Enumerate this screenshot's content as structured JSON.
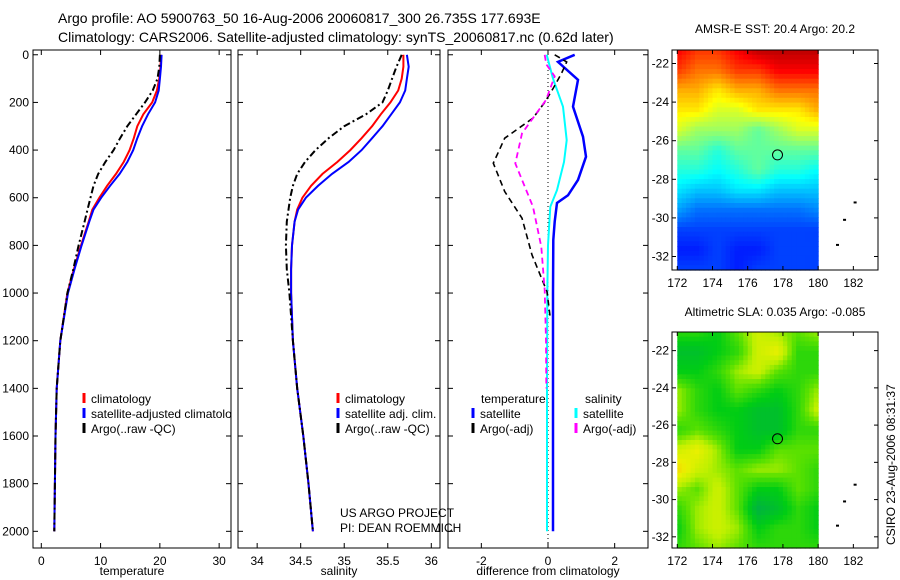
{
  "header": {
    "line1": "Argo profile: AO 5900763_50 16-Aug-2006 20060817_300 26.735S 177.693E",
    "line2": "Climatology: CARS2006. Satellite-adjusted climatology: synTS_20060817.nc (0.62d later)"
  },
  "credit": {
    "project": "US ARGO PROJECT",
    "pi": "PI: DEAN ROEMMICH"
  },
  "stamp": "CSIRO 23-Aug-2006 08:31:37",
  "chart_data": [
    {
      "type": "line",
      "id": "temperature",
      "xlabel": "temperature",
      "ylabel": "",
      "xlim": [
        -1.4,
        32
      ],
      "ylim": [
        2070,
        -20
      ],
      "xticks": [
        0,
        10,
        20,
        30
      ],
      "yticks": [
        0,
        200,
        400,
        600,
        800,
        1000,
        1200,
        1400,
        1600,
        1800,
        2000
      ],
      "legend": [
        "climatology",
        "satellite-adjusted climatology",
        "Argo(..raw -QC)"
      ],
      "legend_visible_text": [
        "climatology",
        "satellite-adjusted climatolo",
        "Argo(..raw -QC)"
      ],
      "depth": [
        0,
        50,
        100,
        150,
        200,
        250,
        300,
        350,
        400,
        450,
        500,
        550,
        600,
        650,
        700,
        800,
        900,
        1000,
        1200,
        1400,
        1600,
        1800,
        2000
      ],
      "series": [
        {
          "name": "climatology",
          "color": "#ff0000",
          "style": "solid",
          "values": [
            20.2,
            20.1,
            19.9,
            19.5,
            18.7,
            17.2,
            16.2,
            15.6,
            14.9,
            13.9,
            12.6,
            11.1,
            9.8,
            8.6,
            8.0,
            6.7,
            5.5,
            4.4,
            3.2,
            2.6,
            2.4,
            2.3,
            2.2
          ]
        },
        {
          "name": "satellite-adjusted climatology",
          "color": "#0000ff",
          "style": "solid",
          "values": [
            20.3,
            20.2,
            20.0,
            19.8,
            19.2,
            18.0,
            17.0,
            16.2,
            15.5,
            14.5,
            13.2,
            11.6,
            10.1,
            8.8,
            8.1,
            6.8,
            5.6,
            4.5,
            3.2,
            2.6,
            2.4,
            2.3,
            2.2
          ]
        },
        {
          "name": "Argo(..raw -QC)",
          "color": "#000000",
          "style": "dashdot",
          "values": [
            20.0,
            19.9,
            19.6,
            18.8,
            17.5,
            16.0,
            14.5,
            13.3,
            12.2,
            10.8,
            9.6,
            8.8,
            8.3,
            7.8,
            7.3,
            6.3,
            5.4,
            4.4,
            3.2,
            2.6,
            2.4,
            2.3,
            2.2
          ]
        }
      ]
    },
    {
      "type": "line",
      "id": "salinity",
      "xlabel": "salinity",
      "xlim": [
        33.78,
        36.1
      ],
      "ylim": [
        2070,
        -20
      ],
      "xticks": [
        34,
        34.5,
        35,
        35.5,
        36
      ],
      "legend": [
        "climatology",
        "satellite adj. clim.",
        "Argo(..raw -QC)"
      ],
      "depth": [
        0,
        50,
        100,
        150,
        200,
        250,
        300,
        350,
        400,
        450,
        500,
        550,
        600,
        650,
        700,
        800,
        900,
        1000,
        1200,
        1400,
        1600,
        1800,
        2000
      ],
      "series": [
        {
          "name": "climatology",
          "color": "#ff0000",
          "style": "solid",
          "values": [
            35.68,
            35.68,
            35.66,
            35.62,
            35.53,
            35.42,
            35.32,
            35.2,
            35.07,
            34.92,
            34.75,
            34.62,
            34.52,
            34.46,
            34.43,
            34.4,
            34.39,
            34.39,
            34.41,
            34.46,
            34.53,
            34.59,
            34.64
          ]
        },
        {
          "name": "satellite adj. clim.",
          "color": "#0000ff",
          "style": "solid",
          "values": [
            35.72,
            35.74,
            35.72,
            35.7,
            35.64,
            35.54,
            35.44,
            35.32,
            35.2,
            35.05,
            34.86,
            34.7,
            34.56,
            34.47,
            34.43,
            34.4,
            34.39,
            34.39,
            34.41,
            34.46,
            34.53,
            34.59,
            34.64
          ]
        },
        {
          "name": "Argo(..raw -QC)",
          "color": "#000000",
          "style": "dashdot",
          "values": [
            35.66,
            35.6,
            35.55,
            35.5,
            35.44,
            35.25,
            35.0,
            34.82,
            34.67,
            34.55,
            34.46,
            34.41,
            34.38,
            34.36,
            34.34,
            34.33,
            34.34,
            34.37,
            34.41,
            34.46,
            34.53,
            34.59,
            34.64
          ]
        }
      ]
    },
    {
      "type": "line",
      "id": "difference",
      "xlabel": "difference from climatology",
      "xlim": [
        -3,
        3
      ],
      "ylim": [
        2070,
        -20
      ],
      "xticks": [
        -2,
        0,
        2
      ],
      "legend_headers": [
        "temperature",
        "salinity"
      ],
      "legend": [
        "satellite",
        "Argo(-adj)",
        "satellite",
        "Argo(-adj)"
      ],
      "series": [
        {
          "name": "temperature satellite",
          "color": "#0000ff",
          "style": "solid",
          "width": 2.5,
          "depth": [
            0,
            30,
            105,
            218,
            344,
            428,
            525,
            590,
            622,
            700,
            777,
            1000,
            1400,
            2000
          ],
          "values": [
            0.8,
            0.3,
            0.9,
            0.75,
            1.05,
            1.14,
            0.9,
            0.6,
            0.27,
            0.2,
            0.16,
            0.15,
            0.15,
            0.15
          ]
        },
        {
          "name": "salinity satellite",
          "color": "#00ffff",
          "style": "solid",
          "width": 2,
          "depth": [
            0,
            100,
            218,
            358,
            450,
            568,
            638,
            800,
            1000,
            1400,
            2000
          ],
          "values": [
            -0.04,
            0.15,
            0.45,
            0.56,
            0.48,
            0.27,
            0.07,
            0.0,
            -0.02,
            -0.03,
            -0.03
          ]
        },
        {
          "name": "temperature Argo(-adj)",
          "color": "#000000",
          "style": "dashed",
          "width": 1.6,
          "depth": [
            0,
            30,
            80,
            140,
            200,
            266,
            350,
            455,
            574,
            686,
            840,
            994,
            1106
          ],
          "values": [
            0.2,
            0.56,
            0.4,
            0.16,
            -0.1,
            -0.45,
            -1.3,
            -1.64,
            -1.3,
            -0.78,
            -0.48,
            -0.03,
            0.07
          ]
        },
        {
          "name": "salinity Argo(-adj)",
          "color": "#ff00ff",
          "style": "dashed",
          "width": 1.8,
          "depth": [
            0,
            40,
            91,
            190,
            330,
            456,
            638,
            806,
            988,
            1200,
            1400
          ],
          "values": [
            -0.1,
            -0.05,
            0.2,
            -0.06,
            -0.78,
            -0.98,
            -0.45,
            -0.2,
            -0.1,
            -0.06,
            -0.05
          ]
        }
      ]
    },
    {
      "type": "heatmap",
      "id": "sst-map",
      "title": "AMSR-E SST: 20.4 Argo: 20.2",
      "xlim": [
        171.7,
        183.4
      ],
      "ylim": [
        -21.3,
        -32.7
      ],
      "xticks": [
        172,
        174,
        176,
        178,
        180,
        182
      ],
      "yticks": [
        -22,
        -24,
        -26,
        -28,
        -30,
        -32
      ],
      "lon": [
        172.5,
        173.5,
        174.5,
        175.5,
        176.5,
        177.5,
        178.5,
        179.5
      ],
      "lat": [
        -21.8,
        -22.8,
        -23.8,
        -24.8,
        -25.8,
        -26.8,
        -27.8,
        -28.8,
        -29.8,
        -30.8,
        -31.8,
        -32.3
      ],
      "clim": [
        16,
        24.5
      ],
      "values": [
        [
          23.5,
          23,
          23,
          23.5,
          24,
          24,
          24,
          24
        ],
        [
          23,
          22.5,
          22.5,
          23,
          23,
          23.5,
          23.5,
          23.5
        ],
        [
          22,
          22,
          21.5,
          22,
          22,
          22.5,
          22.5,
          22.5
        ],
        [
          21.5,
          21.5,
          21,
          21,
          21.5,
          21.5,
          21.5,
          22
        ],
        [
          21,
          20.5,
          20.5,
          20.5,
          20,
          20.5,
          21,
          21
        ],
        [
          20,
          20,
          19.5,
          20,
          20,
          20,
          20,
          20
        ],
        [
          19.5,
          19.5,
          19.2,
          19.5,
          20,
          19.5,
          19.5,
          19.2
        ],
        [
          19,
          18.7,
          18.7,
          19,
          19,
          18.7,
          18.7,
          18.7
        ],
        [
          18.4,
          18,
          18,
          18,
          18,
          18,
          18,
          18.2
        ],
        [
          17.6,
          17.6,
          17.6,
          17.6,
          17.6,
          17.6,
          17.6,
          17.6
        ],
        [
          17.3,
          17.3,
          17.6,
          17.3,
          17.3,
          17.6,
          17.6,
          17.6
        ],
        [
          17.6,
          17.6,
          17.6,
          17.3,
          17.6,
          17.6,
          17.6,
          17.6
        ]
      ],
      "argo_position": [
        177.693,
        -26.735
      ],
      "islands": [
        [
          182.1,
          -29.2
        ],
        [
          181.5,
          -30.1
        ],
        [
          181.1,
          -31.4
        ]
      ]
    },
    {
      "type": "heatmap",
      "id": "sla-map",
      "title": "Altimetric SLA: 0.035 Argo: -0.085",
      "xlim": [
        171.7,
        183.4
      ],
      "ylim": [
        -21.0,
        -32.6
      ],
      "xticks": [
        172,
        174,
        176,
        178,
        180,
        182
      ],
      "yticks": [
        -22,
        -24,
        -26,
        -28,
        -30,
        -32
      ],
      "lon": [
        172.5,
        173.5,
        174.5,
        175.5,
        176.5,
        177.5,
        178.5,
        179.5
      ],
      "lat": [
        -21.5,
        -22.5,
        -23.5,
        -24.5,
        -25.5,
        -26.5,
        -27.5,
        -28.5,
        -29.5,
        -30.5,
        -31.5,
        -32.3
      ],
      "clim": [
        -0.2,
        0.3
      ],
      "values": [
        [
          0,
          0,
          -0.05,
          0.05,
          0.15,
          0.1,
          0.05,
          0.1
        ],
        [
          -0.1,
          -0.1,
          -0.05,
          0,
          0.15,
          0.2,
          0,
          0
        ],
        [
          -0.05,
          -0.05,
          0,
          0.1,
          0.15,
          0.05,
          0,
          0
        ],
        [
          0.1,
          0,
          -0.05,
          0.05,
          0,
          -0.05,
          0,
          0.1
        ],
        [
          0.1,
          0,
          -0.05,
          -0.05,
          -0.1,
          -0.1,
          0,
          0.15
        ],
        [
          0,
          0.05,
          0,
          -0.05,
          -0.1,
          -0.1,
          0,
          0
        ],
        [
          0.15,
          0.2,
          0.1,
          -0.05,
          -0.05,
          0.05,
          0.05,
          0.05
        ],
        [
          0.25,
          0.15,
          0.1,
          0.05,
          0.1,
          0.1,
          0.05,
          0
        ],
        [
          0.1,
          0.05,
          0.15,
          0.05,
          -0.05,
          -0.05,
          0.05,
          0
        ],
        [
          0,
          0.1,
          0.15,
          0.05,
          -0.15,
          -0.1,
          0,
          -0.05
        ],
        [
          -0.05,
          0.1,
          0.15,
          0.1,
          -0.05,
          0,
          0,
          -0.05
        ],
        [
          0,
          0.05,
          0.1,
          0.05,
          0,
          0,
          0,
          0
        ]
      ],
      "argo_position": [
        177.693,
        -26.735
      ],
      "islands": [
        [
          182.1,
          -29.2
        ],
        [
          181.5,
          -30.1
        ],
        [
          181.1,
          -31.4
        ]
      ]
    }
  ]
}
